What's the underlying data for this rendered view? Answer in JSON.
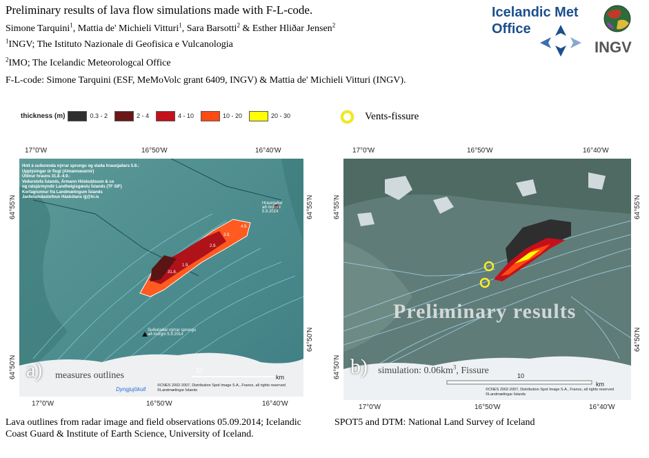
{
  "header": {
    "title": "Preliminary results of lava flow simulations made with F-L-code.",
    "authors": {
      "a1": "Simone Tarquini",
      "a2": ", Mattia de' Michieli Vitturi",
      "a3": ", Sara Barsotti",
      "a4": " & Esther Hliðar Jensen",
      "s1": "1",
      "s2": "1",
      "s3": "2",
      "s4": "2"
    },
    "aff1_sup": "1",
    "aff1": "INGV; The Istituto Nazionale di Geofisica e Vulcanologia",
    "aff2_sup": "2",
    "aff2": "IMO; The Icelandic Meteorologcal Office",
    "code_credit": "F-L-code: Simone Tarquini (ESF, MeMoVolc grant 6409, INGV) & Mattia de' Michieli Vitturi (INGV)."
  },
  "logos": {
    "imo_line1": "Icelandic Met",
    "imo_line2": "Office",
    "ingv": "INGV"
  },
  "legend": {
    "title": "thickness (m)",
    "items": [
      {
        "label": "0.3 - 2",
        "color": "#2f2f2f"
      },
      {
        "label": "2 - 4",
        "color": "#6b1618"
      },
      {
        "label": "4 - 10",
        "color": "#c4101a"
      },
      {
        "label": "10 - 20",
        "color": "#ff4a12"
      },
      {
        "label": "20 - 30",
        "color": "#ffff00"
      }
    ],
    "vents_label": "Vents-fissure"
  },
  "map1": {
    "top_ticks": [
      "17°0'W",
      "16°50'W",
      "16°40'W"
    ],
    "bottom_ticks": [
      "17°0'W",
      "16°50'W",
      "16°40'W"
    ],
    "left_ticks": [
      "64°55'N",
      "64°50'N"
    ],
    "right_ticks": [
      "64°55'N",
      "64°50'N"
    ],
    "info_lines": [
      "Hnit á suðurenda nýrrar sprungu og staða hraunjaðars 5.9.:",
      "Upplýsingar úr flugi (Almannavarnir)",
      "Útlínur hrauns 31.8.-4.9.:",
      "Veðurstofa Íslands, Ármann Höskuldsson & co",
      "og ratsjármyndir Landhelgisgæslu Íslands (TF SIF)",
      "Kortagrunnur frá Landmælingum Íslands",
      "Jarðvísindastofnun Háskólans  ijj@hi.is"
    ],
    "edge_label_1": "Hraunjaðar",
    "edge_label_2": "að morgni",
    "edge_label_3": "5.9.2014",
    "fissure_label_1": "Suðurjaðar nýrrar sprungu",
    "fissure_label_2": "að morgni 5.9.2014",
    "date_labels": [
      "4.9.",
      "3.9.",
      "2.9.",
      "1.9.",
      "31.8."
    ],
    "scale": "10",
    "scale_unit": "km",
    "glacier": "Dyngjujökull",
    "copyright_1": "©CNES 2002-2007, Distribution Spot Image S.A., France, all rights reserved",
    "copyright_2": "©Landmælingar Íslands",
    "panel_letter": "a)",
    "panel_sub": "measures outlines"
  },
  "map2": {
    "top_ticks": [
      "17°0'W",
      "16°50'W",
      "16°40'W"
    ],
    "bottom_ticks": [
      "17°0'W",
      "16°50'W",
      "16°40'W"
    ],
    "left_ticks": [
      "64°55'N",
      "64°50'N"
    ],
    "right_ticks": [
      "64°55'N",
      "64°50'N"
    ],
    "overlay": "Preliminary results",
    "scale": "10",
    "scale_unit": "km",
    "copyright_1": "©CNES 2002-2007, Distribution Spot Image S.A., France, all rights reserved",
    "copyright_2": "©Landmælingar Íslands",
    "panel_letter": "b)",
    "panel_sub": "simulation: 0.06km",
    "panel_sub_sup": "3",
    "panel_sub_tail": ", Fissure"
  },
  "captions": {
    "left": "Lava outlines from radar image and field observations 05.09.2014; Icelandic Coast Guard & Institute of Earth Science, University of Iceland.",
    "right": "SPOT5 and DTM:  National Land Survey of Iceland"
  }
}
